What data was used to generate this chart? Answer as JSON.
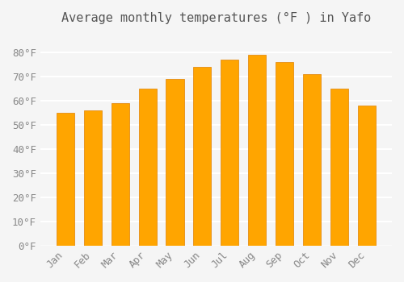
{
  "months": [
    "Jan",
    "Feb",
    "Mar",
    "Apr",
    "May",
    "Jun",
    "Jul",
    "Aug",
    "Sep",
    "Oct",
    "Nov",
    "Dec"
  ],
  "values": [
    55,
    56,
    59,
    65,
    69,
    74,
    77,
    79,
    76,
    71,
    65,
    58
  ],
  "bar_color": "#FFA500",
  "bar_edge_color": "#E08000",
  "title": "Average monthly temperatures (°F ) in Yafo",
  "ylabel": "",
  "xlabel": "",
  "ylim": [
    0,
    88
  ],
  "yticks": [
    0,
    10,
    20,
    30,
    40,
    50,
    60,
    70,
    80
  ],
  "ytick_labels": [
    "0°F",
    "10°F",
    "20°F",
    "30°F",
    "40°F",
    "50°F",
    "60°F",
    "70°F",
    "80°F"
  ],
  "background_color": "#f5f5f5",
  "grid_color": "#ffffff",
  "title_fontsize": 11,
  "tick_fontsize": 9,
  "bar_width": 0.65
}
